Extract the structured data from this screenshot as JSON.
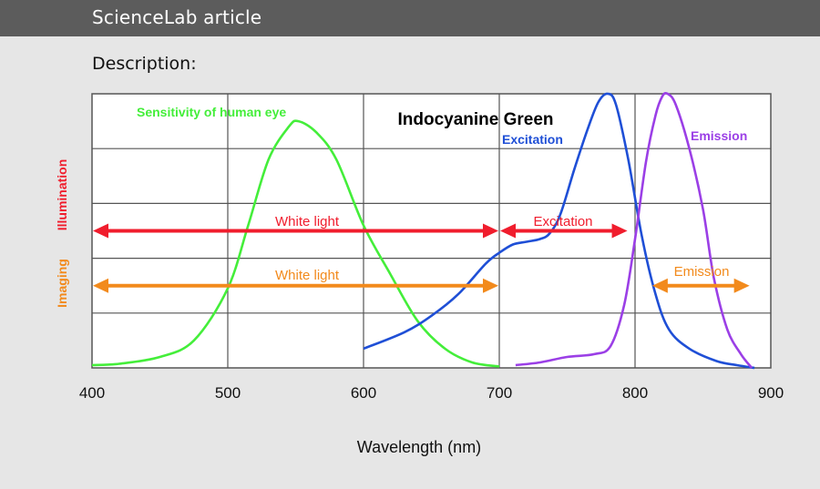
{
  "header": {
    "title": "ScienceLab article"
  },
  "section": {
    "label": "Description:"
  },
  "chart_data": {
    "type": "line",
    "title": "Indocyanine Green",
    "xlabel": "Wavelength (nm)",
    "ylabel": "",
    "xlim": [
      400,
      900
    ],
    "ylim": [
      0,
      1
    ],
    "x_ticks": [
      400,
      500,
      600,
      700,
      800,
      900
    ],
    "grid": true,
    "series": [
      {
        "name": "Sensitivity of human eye",
        "color": "#44ee3a",
        "points": [
          [
            400,
            0.01
          ],
          [
            420,
            0.015
          ],
          [
            450,
            0.04
          ],
          [
            475,
            0.1
          ],
          [
            500,
            0.29
          ],
          [
            515,
            0.52
          ],
          [
            530,
            0.76
          ],
          [
            545,
            0.88
          ],
          [
            552,
            0.9
          ],
          [
            565,
            0.86
          ],
          [
            580,
            0.76
          ],
          [
            600,
            0.52
          ],
          [
            620,
            0.34
          ],
          [
            640,
            0.17
          ],
          [
            660,
            0.07
          ],
          [
            680,
            0.02
          ],
          [
            700,
            0.005
          ]
        ]
      },
      {
        "name": "Excitation",
        "color": "#1f4fd6",
        "points": [
          [
            600,
            0.07
          ],
          [
            630,
            0.13
          ],
          [
            650,
            0.19
          ],
          [
            670,
            0.27
          ],
          [
            690,
            0.38
          ],
          [
            700,
            0.42
          ],
          [
            710,
            0.45
          ],
          [
            720,
            0.46
          ],
          [
            730,
            0.47
          ],
          [
            737,
            0.49
          ],
          [
            745,
            0.56
          ],
          [
            755,
            0.72
          ],
          [
            765,
            0.87
          ],
          [
            773,
            0.97
          ],
          [
            780,
            1.0
          ],
          [
            786,
            0.96
          ],
          [
            795,
            0.76
          ],
          [
            805,
            0.48
          ],
          [
            815,
            0.27
          ],
          [
            825,
            0.14
          ],
          [
            840,
            0.07
          ],
          [
            860,
            0.025
          ],
          [
            875,
            0.01
          ],
          [
            888,
            0.0
          ]
        ]
      },
      {
        "name": "Emission",
        "color": "#9b3fe6",
        "points": [
          [
            712,
            0.01
          ],
          [
            730,
            0.02
          ],
          [
            750,
            0.04
          ],
          [
            770,
            0.05
          ],
          [
            782,
            0.08
          ],
          [
            792,
            0.23
          ],
          [
            800,
            0.47
          ],
          [
            808,
            0.75
          ],
          [
            815,
            0.92
          ],
          [
            820,
            0.99
          ],
          [
            824,
            1.0
          ],
          [
            830,
            0.96
          ],
          [
            840,
            0.8
          ],
          [
            850,
            0.58
          ],
          [
            858,
            0.33
          ],
          [
            868,
            0.14
          ],
          [
            878,
            0.05
          ],
          [
            886,
            0.0
          ]
        ]
      }
    ],
    "ranges": [
      {
        "group": "Illumination",
        "label": "White light",
        "x": [
          400,
          700
        ],
        "y": 0.5,
        "color": "#f01d2d"
      },
      {
        "group": "Illumination",
        "label": "Excitation",
        "x": [
          700,
          795
        ],
        "y": 0.5,
        "color": "#f01d2d"
      },
      {
        "group": "Imaging",
        "label": "White light",
        "x": [
          400,
          700
        ],
        "y": 0.3,
        "color": "#f28a1c"
      },
      {
        "group": "Imaging",
        "label": "Emission",
        "x": [
          812,
          885
        ],
        "y": 0.3,
        "color": "#f28a1c"
      }
    ],
    "side_labels": [
      {
        "text": "Illumination",
        "color": "#f01d2d"
      },
      {
        "text": "Imaging",
        "color": "#f28a1c"
      }
    ],
    "annotations": [
      {
        "text": "Sensitivity of human eye",
        "color": "#44ee3a"
      },
      {
        "text": "Excitation",
        "color": "#1f4fd6"
      },
      {
        "text": "Emission",
        "color": "#9b3fe6"
      }
    ]
  }
}
